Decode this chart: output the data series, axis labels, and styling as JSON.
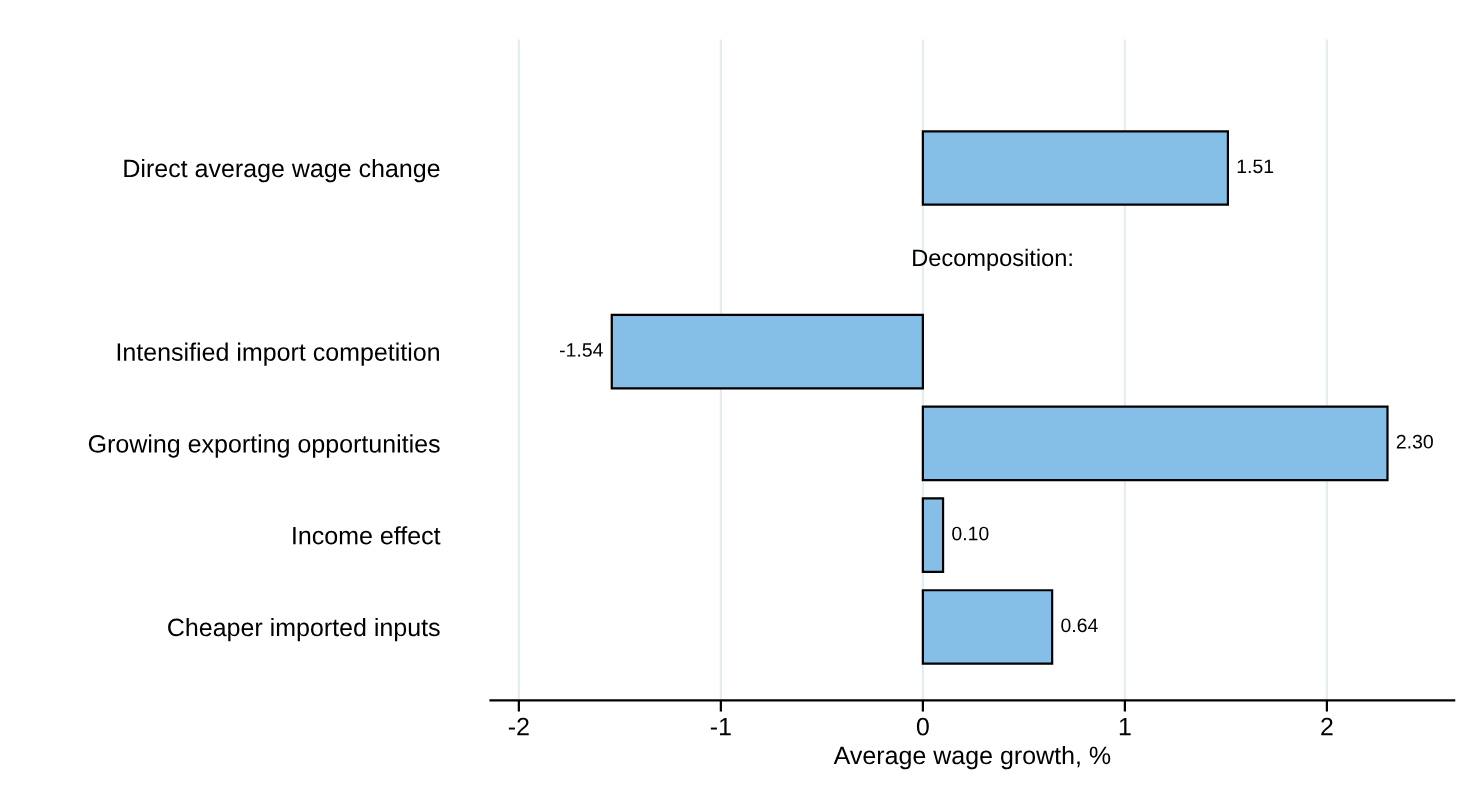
{
  "chart_data": {
    "type": "bar",
    "orientation": "horizontal",
    "xlabel": "Average wage growth, %",
    "categories": [
      "Direct average wage change",
      null,
      "Intensified import competition",
      "Growing exporting opportunities",
      "Income effect",
      "Cheaper imported inputs"
    ],
    "values": [
      1.51,
      null,
      -1.54,
      2.3,
      0.1,
      0.64
    ],
    "value_labels": [
      "1.51",
      null,
      "-1.54",
      "2.30",
      "0.10",
      "0.64"
    ],
    "color": "#85bfe8",
    "annotations": [
      "Decomposition:"
    ],
    "xlim": [
      -2.14,
      2.63
    ],
    "xticks": [
      -2,
      -1,
      0,
      1,
      2
    ],
    "grid": "x"
  }
}
